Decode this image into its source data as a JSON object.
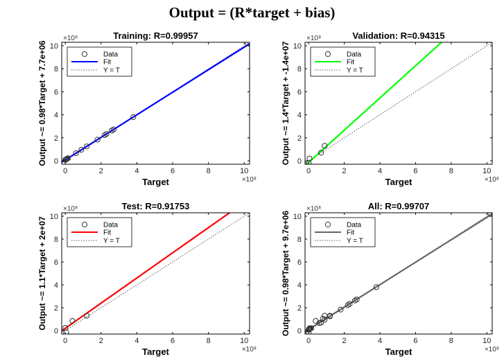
{
  "figure_title": "Output = (R*target + bias)",
  "chart_data": [
    {
      "type": "scatter",
      "title": "Training: R=0.99957",
      "xlabel": "Target",
      "ylabel": "Output ~= 0.98*Target + 7.7e+06",
      "x_multiplier": "×10⁸",
      "y_multiplier": "×10⁸",
      "xlim": [
        -0.2,
        10.3
      ],
      "ylim": [
        -0.3,
        10.3
      ],
      "xticks": [
        0,
        2,
        4,
        6,
        8,
        10
      ],
      "yticks": [
        0,
        2,
        4,
        6,
        8,
        10
      ],
      "fit_color": "#0000ff",
      "fit": {
        "slope": 0.98,
        "intercept": 0.077
      },
      "legend": {
        "position": "top-left",
        "entries": [
          "Data",
          "Fit",
          "Y = T"
        ]
      },
      "series": [
        {
          "name": "Data",
          "x": [
            0,
            0.02,
            0.05,
            0.08,
            0.1,
            0.15,
            0.6,
            0.9,
            1.2,
            1.8,
            2.2,
            2.3,
            2.6,
            2.7,
            3.8,
            10.2
          ],
          "y": [
            0.08,
            0.1,
            0.13,
            0.15,
            0.18,
            0.22,
            0.66,
            0.96,
            1.25,
            1.84,
            2.23,
            2.33,
            2.63,
            2.72,
            3.8,
            10.2
          ]
        }
      ]
    },
    {
      "type": "scatter",
      "title": "Validation: R=0.94315",
      "xlabel": "Target",
      "ylabel": "Output ~= 1.4*Target + -1.4e+07",
      "x_multiplier": "×10⁸",
      "y_multiplier": "×10⁸",
      "xlim": [
        -0.2,
        10.3
      ],
      "ylim": [
        -0.3,
        10.3
      ],
      "xticks": [
        0,
        2,
        4,
        6,
        8,
        10
      ],
      "yticks": [
        0,
        2,
        4,
        6,
        8,
        10
      ],
      "fit_color": "#00ff00",
      "fit": {
        "slope": 1.4,
        "intercept": -0.14
      },
      "legend": {
        "position": "top-left",
        "entries": [
          "Data",
          "Fit",
          "Y = T"
        ]
      },
      "series": [
        {
          "name": "Data",
          "x": [
            0,
            0.05,
            0.7,
            0.9
          ],
          "y": [
            -0.2,
            0.2,
            0.7,
            1.3
          ]
        }
      ]
    },
    {
      "type": "scatter",
      "title": "Test: R=0.91753",
      "xlabel": "Target",
      "ylabel": "Output ~= 1.1*Target + 2e+07",
      "x_multiplier": "×10⁸",
      "y_multiplier": "×10⁸",
      "xlim": [
        -0.2,
        10.3
      ],
      "ylim": [
        -0.3,
        10.3
      ],
      "xticks": [
        0,
        2,
        4,
        6,
        8,
        10
      ],
      "yticks": [
        0,
        2,
        4,
        6,
        8,
        10
      ],
      "fit_color": "#ff0000",
      "fit": {
        "slope": 1.1,
        "intercept": 0.2
      },
      "legend": {
        "position": "top-left",
        "entries": [
          "Data",
          "Fit",
          "Y = T"
        ]
      },
      "series": [
        {
          "name": "Data",
          "x": [
            0,
            0.05,
            0.4,
            1.2
          ],
          "y": [
            0.25,
            -0.15,
            0.85,
            1.3
          ]
        }
      ]
    },
    {
      "type": "scatter",
      "title": "All: R=0.99707",
      "xlabel": "Target",
      "ylabel": "Output ~= 0.98*Target + 9.7e+06",
      "x_multiplier": "×10⁸",
      "y_multiplier": "×10⁸",
      "xlim": [
        -0.2,
        10.3
      ],
      "ylim": [
        -0.3,
        10.3
      ],
      "xticks": [
        0,
        2,
        4,
        6,
        8,
        10
      ],
      "yticks": [
        0,
        2,
        4,
        6,
        8,
        10
      ],
      "fit_color": "#666666",
      "fit": {
        "slope": 0.98,
        "intercept": 0.097
      },
      "legend": {
        "position": "top-left",
        "entries": [
          "Data",
          "Fit",
          "Y = T"
        ]
      },
      "series": [
        {
          "name": "Data",
          "x": [
            0,
            0,
            0.02,
            0.05,
            0.05,
            0.08,
            0.1,
            0.15,
            0.4,
            0.6,
            0.7,
            0.8,
            0.9,
            0.9,
            1.2,
            1.2,
            1.8,
            2.2,
            2.3,
            2.6,
            2.7,
            3.8,
            10.2
          ],
          "y": [
            0.08,
            -0.2,
            0.1,
            0.2,
            0.13,
            0.15,
            0.18,
            0.22,
            0.85,
            0.66,
            0.7,
            1.05,
            0.96,
            1.3,
            1.25,
            1.3,
            1.84,
            2.23,
            2.33,
            2.63,
            2.72,
            3.8,
            10.2
          ]
        }
      ]
    }
  ]
}
